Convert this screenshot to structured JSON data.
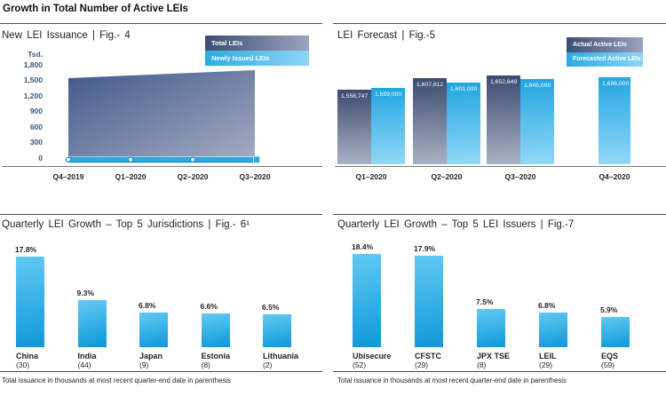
{
  "page_title": "Growth in Total Number of Active LEIs",
  "colors": {
    "accent_cyan": "#29abe2",
    "navy": "#3d4d74",
    "axis_label_blue": "#3a567d",
    "text": "#231f20"
  },
  "chart_data": [
    {
      "id": "fig4",
      "type": "area",
      "title": "New LEI Issuance | Fig.- 4",
      "y_unit_label": "Tsd.",
      "y_ticks": [
        "1,800",
        "1,500",
        "1,200",
        "900",
        "600",
        "300",
        "0"
      ],
      "ylim": [
        0,
        1800
      ],
      "categories": [
        "Q4–2019",
        "Q1–2020",
        "Q2–2020",
        "Q3–2020"
      ],
      "series": [
        {
          "name": "Total LEIs",
          "unit": "thousands",
          "values": [
            1540,
            1593,
            1647,
            1700
          ]
        },
        {
          "name": "Newly Issued LEIs",
          "unit": "thousands",
          "values": [
            40,
            40,
            45,
            40
          ]
        }
      ],
      "legend_position": "top-right",
      "grid": false
    },
    {
      "id": "fig5",
      "type": "bar",
      "title": "LEI Forecast | Fig.-5",
      "categories": [
        "Q1–2020",
        "Q2–2020",
        "Q3–2020",
        "Q4–2020"
      ],
      "series": [
        {
          "name": "Actual Active LEIs",
          "values": [
            1558747,
            1607612,
            1652649,
            null
          ],
          "labels": [
            "1,558,747",
            "1,607,612",
            "1,652,649",
            null
          ]
        },
        {
          "name": "Forecasted Active LEIs",
          "values": [
            1559000,
            1601000,
            1645000,
            1696000
          ],
          "labels": [
            "1,559,000",
            "1,601,000",
            "1,645,000",
            "1,696,000"
          ]
        }
      ],
      "legend_position": "top-right",
      "grid": false
    },
    {
      "id": "fig6",
      "type": "bar",
      "title": "Quarterly LEI Growth – Top 5 Jurisdictions | Fig.- 6¹",
      "categories": [
        "China",
        "India",
        "Japan",
        "Estonia",
        "Lithuania"
      ],
      "category_subs": [
        "(30)",
        "(44)",
        "(9)",
        "(8)",
        "(2)"
      ],
      "values": [
        17.8,
        9.3,
        6.8,
        6.6,
        6.5
      ],
      "value_labels": [
        "17.8%",
        "9.3%",
        "6.8%",
        "6.6%",
        "6.5%"
      ],
      "footnote": "Total issuance in thousands at most recent quarter-end date in parenthesis",
      "grid": false
    },
    {
      "id": "fig7",
      "type": "bar",
      "title": "Quarterly LEI Growth – Top 5 LEI Issuers | Fig.-7",
      "categories": [
        "Ubisecure",
        "CFSTC",
        "JPX TSE",
        "LEIL",
        "EQS"
      ],
      "category_subs": [
        "(52)",
        "(29)",
        "(8)",
        "(29)",
        "(59)"
      ],
      "values": [
        18.4,
        17.9,
        7.5,
        6.8,
        5.9
      ],
      "value_labels": [
        "18.4%",
        "17.9%",
        "7.5%",
        "6.8%",
        "5.9%"
      ],
      "footnote": "Total issuance in thousands at most recent quarter-end date in parenthesis",
      "grid": false
    }
  ]
}
